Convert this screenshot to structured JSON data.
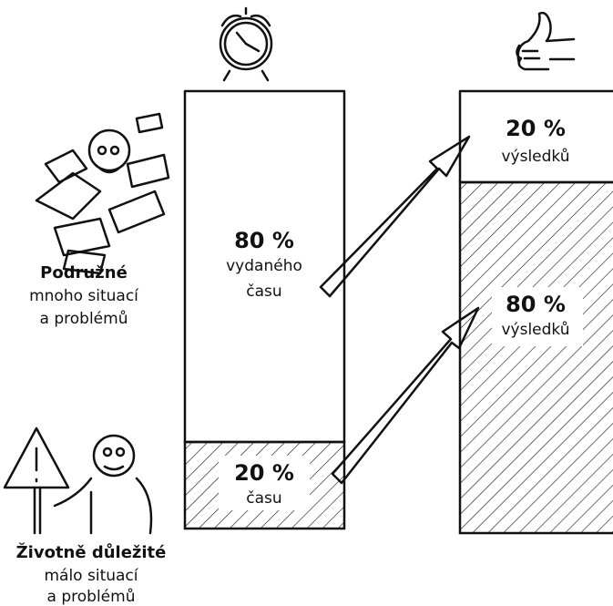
{
  "labels": {
    "minor": {
      "title": "Podružné",
      "lines": [
        "mnoho situací",
        "a problémů"
      ]
    },
    "vital": {
      "title": "Životně důležité",
      "lines": [
        "málo situací",
        "a problémů"
      ]
    }
  },
  "time_bar": {
    "top": {
      "value": "80 %",
      "lines": [
        "vydaného",
        "času"
      ]
    },
    "bottom": {
      "value": "20 %",
      "lines": [
        "času"
      ]
    }
  },
  "results_bar": {
    "top": {
      "value": "20 %",
      "lines": [
        "výsledků"
      ]
    },
    "bottom": {
      "value": "80 %",
      "lines": [
        "výsledků"
      ]
    }
  }
}
